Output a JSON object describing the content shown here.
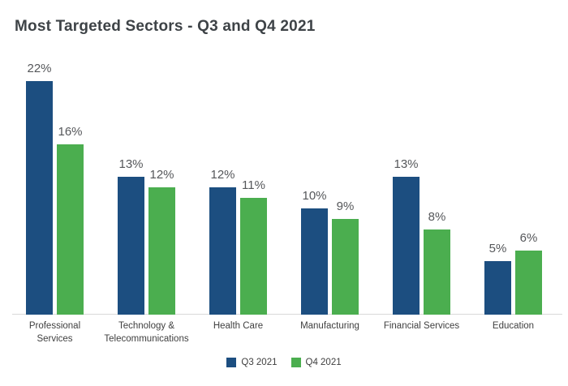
{
  "page": {
    "background_color": "#ffffff"
  },
  "chart_data": {
    "type": "bar",
    "title": "Most Targeted Sectors - Q3 and Q4 2021",
    "categories": [
      "Professional Services",
      "Technology & Telecommunications",
      "Health Care",
      "Manufacturing",
      "Financial Services",
      "Education"
    ],
    "category_tick_lines": [
      "Professional\nServices",
      "Technology &\nTelecommunications",
      "Health Care",
      "Manufacturing",
      "Financial Services",
      "Education"
    ],
    "series": [
      {
        "name": "Q3 2021",
        "color": "#1c4e80",
        "values": [
          22,
          13,
          12,
          10,
          13,
          5
        ]
      },
      {
        "name": "Q4 2021",
        "color": "#4bae4f",
        "values": [
          16,
          12,
          11,
          9,
          8,
          6
        ]
      }
    ],
    "value_suffix": "%",
    "grid": false,
    "legend_position": "bottom-center",
    "colors": {
      "axis_line": "#d9d9d9",
      "title_text": "#3e4347",
      "value_label_text": "#55575a",
      "category_label_text": "#404040"
    }
  }
}
